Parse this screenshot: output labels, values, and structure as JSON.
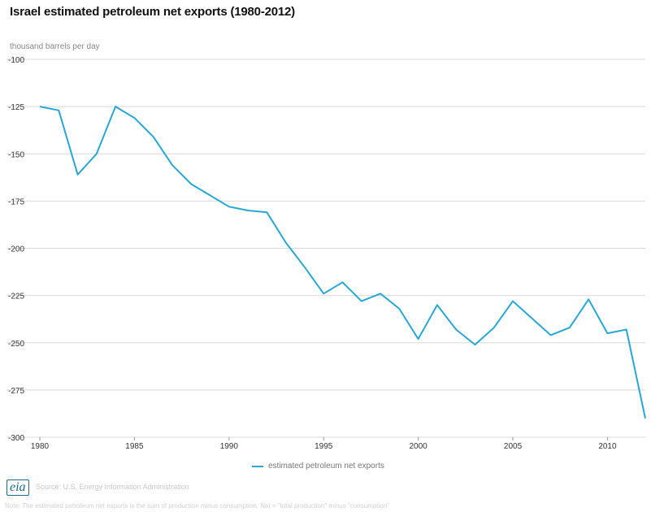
{
  "header": {
    "title": "Israel estimated petroleum net exports (1980-2012)",
    "unit": "thousand barrels per day"
  },
  "footer": {
    "logo_text": "eia",
    "source": "Source: U.S. Energy Information Administration",
    "note": "Note: The estimated petroleum net exports is the sum of production minus consumption. Net = \"total production\" minus \"consumption\""
  },
  "colors": {
    "series": "#2aa7d1",
    "grid": "#d9d9d9"
  },
  "chart_data": {
    "type": "line",
    "title": "Israel estimated petroleum net exports (1980-2012)",
    "ylabel": "thousand barrels per day",
    "xlabel": "",
    "xlim": [
      1980,
      2012
    ],
    "ylim": [
      -300,
      -100
    ],
    "x_ticks": [
      1980,
      1985,
      1990,
      1995,
      2000,
      2005,
      2010
    ],
    "y_ticks": [
      -100,
      -125,
      -150,
      -175,
      -200,
      -225,
      -250,
      -275,
      -300
    ],
    "grid": "horizontal",
    "legend": "bottom",
    "series": [
      {
        "name": "estimated petroleum net exports",
        "x": [
          1980,
          1981,
          1982,
          1983,
          1984,
          1985,
          1986,
          1987,
          1988,
          1989,
          1990,
          1991,
          1992,
          1993,
          1994,
          1995,
          1996,
          1997,
          1998,
          1999,
          2000,
          2001,
          2002,
          2003,
          2004,
          2005,
          2006,
          2007,
          2008,
          2009,
          2010,
          2011,
          2012
        ],
        "y": [
          -125,
          -127,
          -161,
          -150,
          -125,
          -131,
          -141,
          -156,
          -166,
          -172,
          -178,
          -180,
          -181,
          -197,
          -210,
          -224,
          -218,
          -228,
          -224,
          -232,
          -248,
          -230,
          -243,
          -251,
          -242,
          -228,
          -237,
          -246,
          -242,
          -227,
          -245,
          -243,
          -290
        ]
      }
    ]
  }
}
